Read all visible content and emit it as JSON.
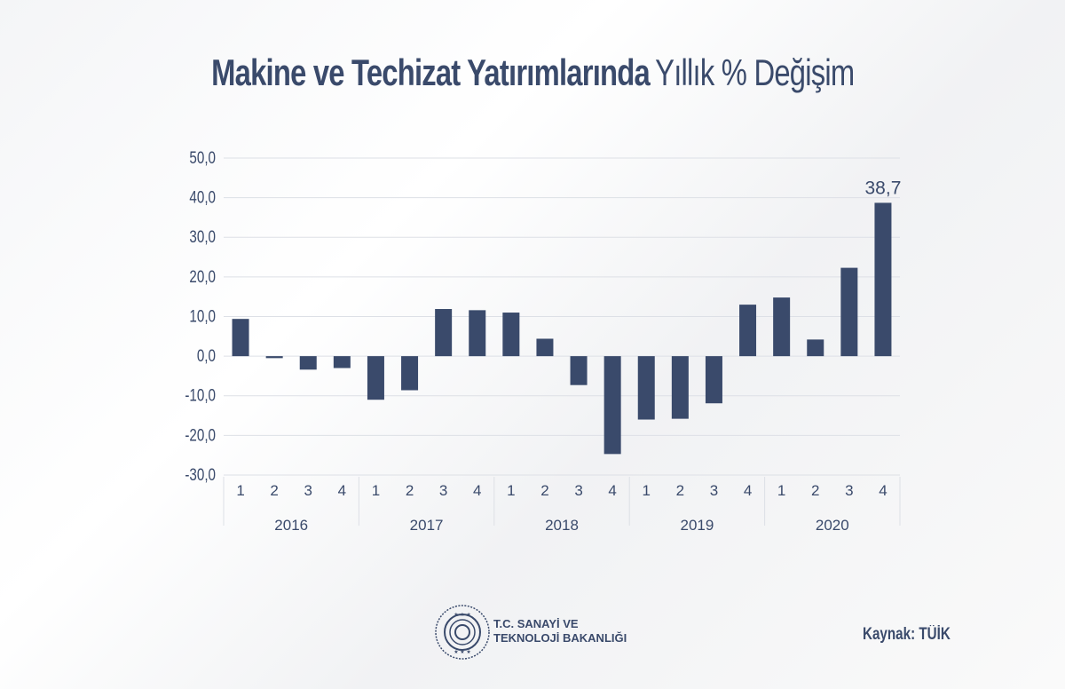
{
  "title": {
    "bold": "Makine ve Techizat Yatırımlarında",
    "light": "Yıllık % Değişim"
  },
  "chart_data": {
    "type": "bar",
    "title": "Makine ve Techizat Yatırımlarında Yıllık % Değişim",
    "xlabel": "",
    "ylabel": "",
    "ylim": [
      -30,
      50
    ],
    "yticks": [
      "50,0",
      "40,0",
      "30,0",
      "20,0",
      "10,0",
      "0,0",
      "-10,0",
      "-20,0",
      "-30,0"
    ],
    "grid": true,
    "years": [
      "2016",
      "2017",
      "2018",
      "2019",
      "2020"
    ],
    "quarters": [
      "1",
      "2",
      "3",
      "4"
    ],
    "values": [
      9.4,
      -0.5,
      -3.4,
      -3.0,
      -11.0,
      -8.6,
      11.9,
      11.6,
      11.0,
      4.4,
      -7.3,
      -24.7,
      -16.0,
      -15.8,
      -11.9,
      13.0,
      14.8,
      4.2,
      22.3,
      38.7
    ],
    "data_labels": [
      {
        "index": 19,
        "text": "38,7"
      }
    ],
    "bar_color": "#3a4a6b"
  },
  "footer": {
    "ministry_line1": "T.C. SANAYİ VE",
    "ministry_line2": "TEKNOLOJİ BAKANLIĞI",
    "source": "Kaynak: TÜİK"
  }
}
